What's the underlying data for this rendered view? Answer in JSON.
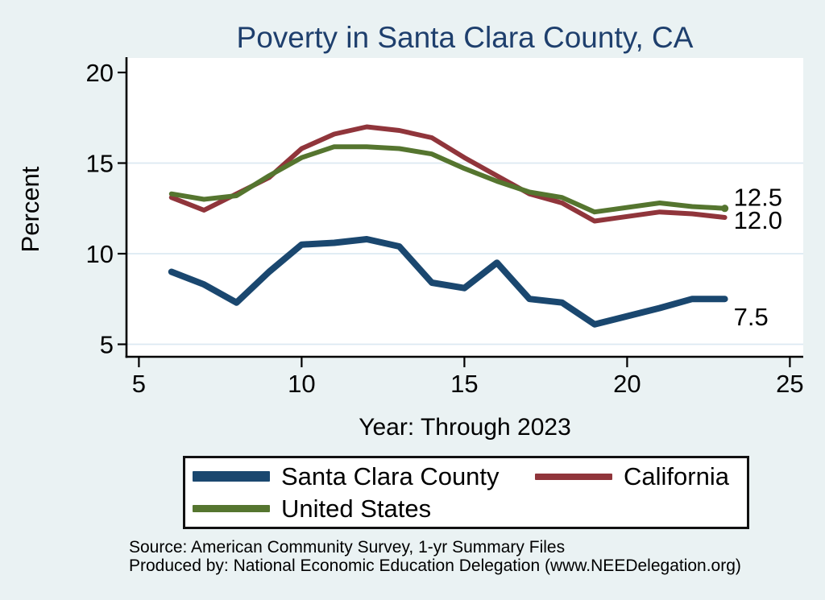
{
  "title": "Poverty in Santa Clara County, CA",
  "colors": {
    "background": "#eaf2f3",
    "plot_background": "#ffffff",
    "gridline": "#dce9f2",
    "axis": "#000000",
    "title_text": "#1e3f6d",
    "label_text": "#000000",
    "navy": "#1a476f",
    "maroon": "#90353b",
    "olive_green": "#55752f"
  },
  "chart_data": {
    "type": "line",
    "title": "Poverty in Santa Clara County, CA",
    "xlabel": "Year: Through 2023",
    "ylabel": "Percent",
    "x_ticks": [
      5,
      10,
      15,
      20,
      25
    ],
    "y_ticks": [
      5,
      10,
      15,
      20
    ],
    "grid_y": [
      5,
      10,
      15
    ],
    "xlim": [
      4.62,
      25.41
    ],
    "ylim": [
      4.31,
      20.8
    ],
    "grid": "horizontal gridlines only, light blue",
    "legend_position": "bottom",
    "x": [
      6,
      7,
      8,
      9,
      10,
      11,
      12,
      13,
      14,
      15,
      16,
      17,
      18,
      19,
      21,
      22,
      23
    ],
    "series": [
      {
        "name": "Santa Clara County",
        "color": "#1a476f",
        "line_width": 8,
        "legend_swatch_height": 13,
        "end_label": "7.5",
        "end_marker": false,
        "values": [
          9.0,
          8.3,
          7.3,
          9.0,
          10.5,
          10.6,
          10.8,
          10.4,
          8.4,
          8.1,
          9.5,
          7.5,
          7.3,
          6.1,
          7.0,
          7.5,
          7.5
        ]
      },
      {
        "name": "California",
        "color": "#90353b",
        "line_width": 6,
        "legend_swatch_height": 8,
        "end_label": "12.0",
        "end_marker": false,
        "values": [
          13.1,
          12.4,
          13.3,
          14.2,
          15.8,
          16.6,
          17.0,
          16.8,
          16.4,
          15.3,
          14.3,
          13.3,
          12.8,
          11.8,
          12.3,
          12.2,
          12.0
        ]
      },
      {
        "name": "United States",
        "color": "#55752f",
        "line_width": 6,
        "legend_swatch_height": 9,
        "end_label": "12.5",
        "end_marker": true,
        "values": [
          13.3,
          13.0,
          13.2,
          14.3,
          15.3,
          15.9,
          15.9,
          15.8,
          15.5,
          14.7,
          14.0,
          13.4,
          13.1,
          12.3,
          12.8,
          12.6,
          12.5
        ]
      }
    ]
  },
  "footer": {
    "source": "Source: American Community Survey, 1-yr Summary Files",
    "produced_by": "Produced by: National Economic Education Delegation (www.NEEDelegation.org)"
  }
}
